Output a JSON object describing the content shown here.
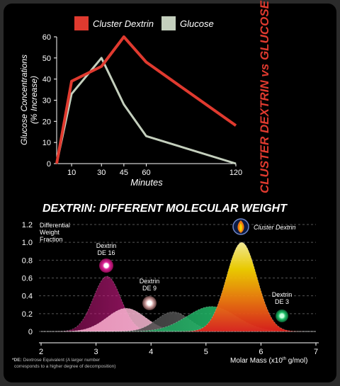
{
  "chart_data": [
    {
      "type": "line",
      "title": "",
      "xlabel": "Minutes",
      "ylabel": "Glucose Concentrations (% Increase)",
      "x_ticks": [
        10,
        30,
        45,
        60,
        120
      ],
      "y_ticks": [
        0,
        10,
        20,
        30,
        40,
        50,
        60
      ],
      "xlim": [
        0,
        120
      ],
      "ylim": [
        0,
        60
      ],
      "side_title": "CLUSTER DEXTRIN vs GLUCOSE",
      "legend_position": "top",
      "series": [
        {
          "name": "Cluster Dextrin",
          "color": "#e03a2f",
          "points": [
            [
              0,
              0
            ],
            [
              10,
              39
            ],
            [
              30,
              46
            ],
            [
              45,
              60
            ],
            [
              60,
              48
            ],
            [
              120,
              18
            ]
          ]
        },
        {
          "name": "Glucose",
          "color": "#c4cfbd",
          "points": [
            [
              0,
              0
            ],
            [
              10,
              33
            ],
            [
              30,
              50
            ],
            [
              45,
              28
            ],
            [
              60,
              13
            ],
            [
              120,
              0
            ]
          ]
        }
      ]
    },
    {
      "type": "area",
      "title": "DEXTRIN: DIFFERENT MOLECULAR WEIGHT",
      "xlabel": "Molar Mass (x10",
      "xlabel_sup": "th",
      "xlabel_tail": " g/mol)",
      "ylabel_lines": [
        "Differential",
        "Weight",
        "Fraction"
      ],
      "x_ticks": [
        2,
        3,
        4,
        5,
        6,
        7
      ],
      "y_ticks": [
        0,
        0.2,
        0.4,
        0.6,
        0.8,
        1.0,
        1.2
      ],
      "xlim": [
        2,
        7
      ],
      "ylim": [
        0,
        1.2
      ],
      "footnote_key": "*DE:",
      "footnote_lines": [
        "Dextrose Equivalent (A larger number",
        "corresponds to a higher degree of decomposition)"
      ],
      "series": [
        {
          "name": "Dextrin DE 16",
          "label_lines": [
            "Dextrin",
            "DE 16"
          ],
          "color": "#e0259a",
          "peak_x": 3.2,
          "peak_y": 0.62,
          "sigma": 0.25
        },
        {
          "name": "Dextrin DE 9",
          "label_lines": [
            "Dextrin",
            "DE 9"
          ],
          "color": "#cfa7a7",
          "peak_x": 3.55,
          "peak_y": 0.26,
          "sigma": 0.35
        },
        {
          "name": "Dextrin DE 9 second peak",
          "label_lines": [],
          "color": "#505050",
          "peak_x": 4.4,
          "peak_y": 0.22,
          "sigma": 0.3
        },
        {
          "name": "Dextrin DE 3",
          "label_lines": [
            "Dextrin",
            "DE 3"
          ],
          "color": "#1fc26a",
          "peak_x": 5.1,
          "peak_y": 0.28,
          "sigma": 0.45
        },
        {
          "name": "Cluster Dextrin",
          "label_lines": [
            "Cluster Dextrin"
          ],
          "color": "#f5d400",
          "peak_x": 5.65,
          "peak_y": 1.0,
          "sigma": 0.28
        }
      ]
    }
  ]
}
